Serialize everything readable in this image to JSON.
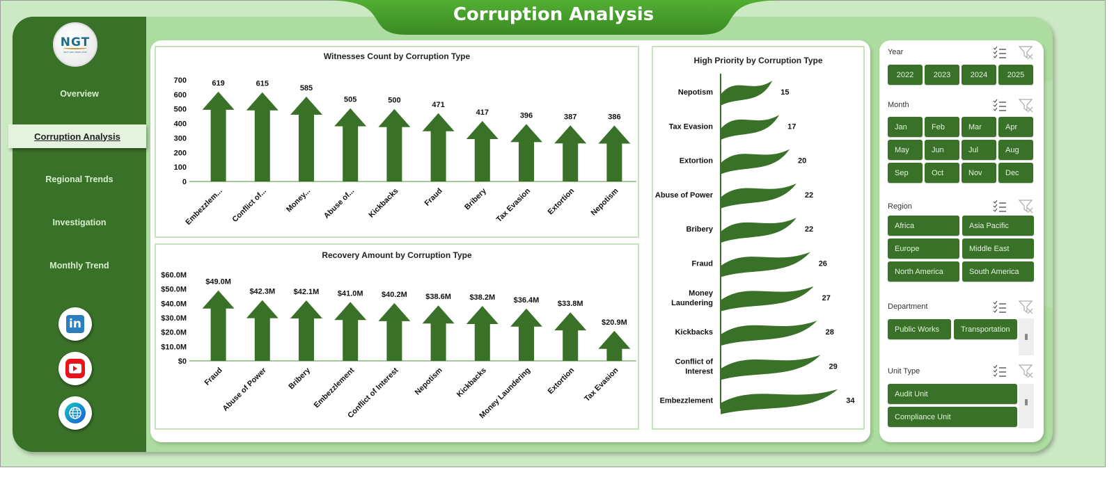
{
  "header": {
    "title": "Corruption Analysis"
  },
  "logo": {
    "text": "NGT",
    "subtext": "NEXT GEN TEMPLATES"
  },
  "sidebar": {
    "items": [
      {
        "label": "Overview",
        "active": false
      },
      {
        "label": "Corruption Analysis",
        "active": true
      },
      {
        "label": "Regional Trends",
        "active": false
      },
      {
        "label": "Investigation",
        "active": false
      },
      {
        "label": "Monthly Trend",
        "active": false
      }
    ],
    "social": [
      {
        "name": "linkedin-icon",
        "glyph": "in"
      },
      {
        "name": "youtube-icon",
        "glyph": "▶"
      },
      {
        "name": "globe-icon",
        "glyph": "🌐"
      }
    ]
  },
  "colors": {
    "primary_green": "#3a7128",
    "title_green": "#4ea52f",
    "light_green_bg": "#cbe9c3",
    "frame_green": "#acdc9f",
    "active_nav_bg": "#e4f2de"
  },
  "filters": {
    "year": {
      "label": "Year",
      "options": [
        "2022",
        "2023",
        "2024",
        "2025"
      ]
    },
    "month": {
      "label": "Month",
      "options": [
        "Jan",
        "Feb",
        "Mar",
        "Apr",
        "May",
        "Jun",
        "Jul",
        "Aug",
        "Sep",
        "Oct",
        "Nov",
        "Dec"
      ]
    },
    "region": {
      "label": "Region",
      "options": [
        "Africa",
        "Asia Pacific",
        "Europe",
        "Middle East",
        "North America",
        "South America"
      ]
    },
    "department": {
      "label": "Department",
      "options": [
        "Public Works",
        "Transportation"
      ]
    },
    "unit_type": {
      "label": "Unit Type",
      "options": [
        "Audit Unit",
        "Compliance Unit"
      ]
    }
  },
  "chart_data": [
    {
      "type": "bar",
      "title": "Witnesses Count by Corruption Type",
      "categories": [
        "Embezzlem...",
        "Conflict of...",
        "Money...",
        "Abuse of...",
        "Kickbacks",
        "Fraud",
        "Bribery",
        "Tax Evasion",
        "Extortion",
        "Nepotism"
      ],
      "full_categories": [
        "Embezzlement",
        "Conflict of Interest",
        "Money Laundering",
        "Abuse of Power",
        "Kickbacks",
        "Fraud",
        "Bribery",
        "Tax Evasion",
        "Extortion",
        "Nepotism"
      ],
      "values": [
        619,
        615,
        585,
        505,
        500,
        471,
        417,
        396,
        387,
        386
      ],
      "labels": [
        "619",
        "615",
        "585",
        "505",
        "500",
        "471",
        "417",
        "396",
        "387",
        "386"
      ],
      "yticks": [
        "0",
        "100",
        "200",
        "300",
        "400",
        "500",
        "600",
        "700"
      ],
      "ylim": [
        0,
        700
      ],
      "xlabel": "",
      "ylabel": "",
      "grid": false,
      "marker": "arrow"
    },
    {
      "type": "bar",
      "title": "Recovery Amount by Corruption Type",
      "categories": [
        "Fraud",
        "Abuse of Power",
        "Bribery",
        "Embezzlement",
        "Conflict of Interest",
        "Nepotism",
        "Kickbacks",
        "Money Laundering",
        "Extortion",
        "Tax Evasion"
      ],
      "values": [
        49.0,
        42.3,
        42.1,
        41.0,
        40.2,
        38.6,
        38.2,
        36.4,
        33.8,
        20.9
      ],
      "labels": [
        "$49.0M",
        "$42.3M",
        "$42.1M",
        "$41.0M",
        "$40.2M",
        "$38.6M",
        "$38.2M",
        "$36.4M",
        "$33.8M",
        "$20.9M"
      ],
      "yticks": [
        "$0",
        "$10.0M",
        "$20.0M",
        "$30.0M",
        "$40.0M",
        "$50.0M",
        "$60.0M"
      ],
      "ylim": [
        0,
        60
      ],
      "unit": "$M",
      "xlabel": "",
      "ylabel": "",
      "grid": false,
      "marker": "arrow"
    },
    {
      "type": "bar",
      "orientation": "horizontal",
      "title": "High Priority by Corruption Type",
      "categories": [
        "Nepotism",
        "Tax Evasion",
        "Extortion",
        "Abuse of Power",
        "Bribery",
        "Fraud",
        "Money Laundering",
        "Kickbacks",
        "Conflict of Interest",
        "Embezzlement"
      ],
      "display_labels": [
        [
          "Nepotism"
        ],
        [
          "Tax Evasion"
        ],
        [
          "Extortion"
        ],
        [
          "Abuse of Power"
        ],
        [
          "Bribery"
        ],
        [
          "Fraud"
        ],
        [
          "Money",
          "Laundering"
        ],
        [
          "Kickbacks"
        ],
        [
          "Conflict of",
          "Interest"
        ],
        [
          "Embezzlement"
        ]
      ],
      "values": [
        15,
        17,
        20,
        22,
        22,
        26,
        27,
        28,
        29,
        34
      ],
      "labels": [
        "15",
        "17",
        "20",
        "22",
        "22",
        "26",
        "27",
        "28",
        "29",
        "34"
      ],
      "xlabel": "",
      "ylabel": "",
      "grid": false,
      "marker": "flag"
    }
  ]
}
